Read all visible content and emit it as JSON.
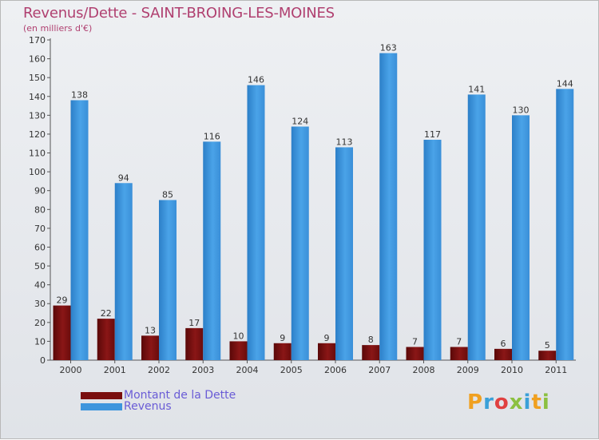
{
  "title": "Revenus/Dette - SAINT-BROING-LES-MOINES",
  "subtitle": "(en milliers d'€)",
  "legend": [
    {
      "label": "Montant de la Dette",
      "color": "#7a0e0e"
    },
    {
      "label": "Revenus",
      "color": "#3d95dd"
    }
  ],
  "logo": "Proxiti",
  "colors": {
    "debt": "#7a0e0e",
    "revenue": "#3d95dd",
    "title": "#b04070"
  },
  "chart_data": {
    "type": "bar",
    "categories": [
      "2000",
      "2001",
      "2002",
      "2003",
      "2004",
      "2005",
      "2006",
      "2007",
      "2008",
      "2009",
      "2010",
      "2011"
    ],
    "series": [
      {
        "name": "Montant de la Dette",
        "values": [
          29,
          22,
          13,
          17,
          10,
          9,
          9,
          8,
          7,
          7,
          6,
          5
        ]
      },
      {
        "name": "Revenus",
        "values": [
          138,
          94,
          85,
          116,
          146,
          124,
          113,
          163,
          117,
          141,
          130,
          144
        ]
      }
    ],
    "ylim": [
      0,
      170
    ],
    "ytick_step": 10,
    "grid": false,
    "legend_position": "bottom-left"
  }
}
